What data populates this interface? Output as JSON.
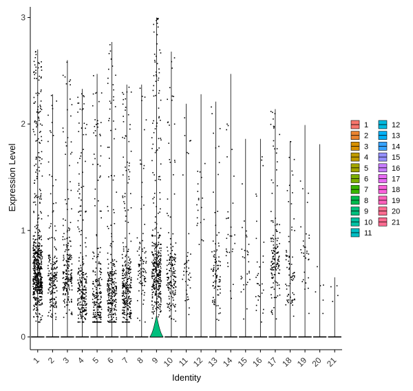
{
  "chart_data": {
    "type": "violin",
    "xlabel": "Identity",
    "ylabel": "Expression Level",
    "ylim": [
      -0.12,
      3.1
    ],
    "yticks": [
      0,
      1,
      2,
      3
    ],
    "grid": false,
    "legend_position": "right",
    "categories": [
      "1",
      "2",
      "3",
      "4",
      "5",
      "6",
      "7",
      "8",
      "9",
      "10",
      "11",
      "12",
      "13",
      "14",
      "15",
      "16",
      "17",
      "18",
      "19",
      "20",
      "21"
    ],
    "colors": [
      "#F8766D",
      "#EA8331",
      "#D89000",
      "#C09B00",
      "#A3A500",
      "#7CAE00",
      "#39B600",
      "#00BB4E",
      "#00BF7D",
      "#00C1A3",
      "#00BFC4",
      "#00BAE0",
      "#00B0F6",
      "#35A2FF",
      "#9590FF",
      "#C77CFF",
      "#E76BF3",
      "#FA62DB",
      "#FF62BC",
      "#FF6C91",
      "#FF6C91"
    ],
    "violin_max": [
      2.7,
      2.28,
      2.6,
      2.33,
      2.47,
      2.77,
      2.37,
      2.37,
      3.0,
      2.68,
      2.19,
      2.28,
      2.21,
      2.47,
      1.86,
      1.86,
      2.14,
      1.84,
      1.99,
      1.81,
      0.56
    ],
    "point_density": [
      600,
      180,
      200,
      230,
      220,
      250,
      280,
      90,
      360,
      160,
      40,
      20,
      90,
      30,
      30,
      30,
      140,
      70,
      30,
      6,
      4
    ],
    "point_center": [
      0.6,
      0.55,
      0.6,
      0.4,
      0.35,
      0.4,
      0.45,
      0.6,
      0.6,
      0.55,
      0.6,
      1.2,
      0.6,
      0.9,
      0.7,
      0.5,
      0.7,
      0.55,
      0.7,
      0.55,
      0.45
    ],
    "tall_violin": {
      "category": "9",
      "peak_width_fraction": 0.9
    }
  }
}
